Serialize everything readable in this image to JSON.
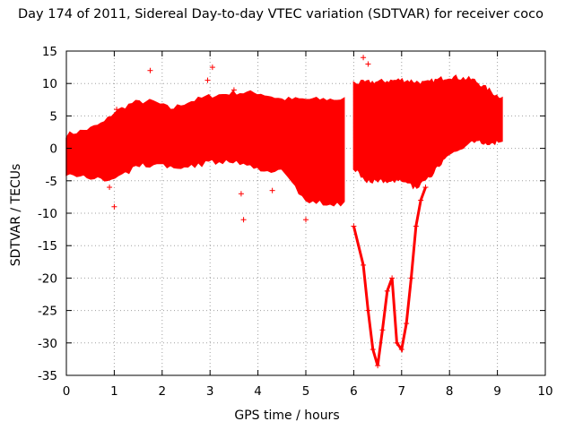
{
  "chart_data": {
    "type": "scatter",
    "title": "Day 174 of 2011, Sidereal Day-to-day VTEC variation (SDTVAR) for receiver coco",
    "xlabel": "GPS time / hours",
    "ylabel": "SDTVAR / TECUs",
    "xlim": [
      0,
      10
    ],
    "ylim": [
      -35,
      15
    ],
    "xticks": [
      "0",
      "1",
      "2",
      "3",
      "4",
      "5",
      "6",
      "7",
      "8",
      "9",
      "10"
    ],
    "yticks": [
      "15",
      "10",
      "5",
      "0",
      "-5",
      "-10",
      "-15",
      "-20",
      "-25",
      "-30",
      "-35"
    ],
    "grid": true,
    "marker": "+",
    "color": "#ff0000",
    "series": [
      {
        "name": "dense band (0–5.8 h)",
        "envelope_upper": [
          [
            0,
            2
          ],
          [
            0.5,
            3
          ],
          [
            0.8,
            4
          ],
          [
            1,
            5.5
          ],
          [
            1.4,
            7
          ],
          [
            1.8,
            7.2
          ],
          [
            2.2,
            6
          ],
          [
            2.5,
            7
          ],
          [
            3,
            8
          ],
          [
            3.5,
            8.5
          ],
          [
            4,
            8.5
          ],
          [
            4.5,
            7.5
          ],
          [
            5,
            7.5
          ],
          [
            5.5,
            7.5
          ],
          [
            5.8,
            7.5
          ]
        ],
        "envelope_lower": [
          [
            0,
            -4
          ],
          [
            0.5,
            -4.5
          ],
          [
            1,
            -5
          ],
          [
            1.5,
            -2.5
          ],
          [
            2,
            -2.5
          ],
          [
            2.5,
            -3
          ],
          [
            3,
            -2
          ],
          [
            3.5,
            -2
          ],
          [
            4,
            -3
          ],
          [
            4.5,
            -3.5
          ],
          [
            5,
            -8
          ],
          [
            5.5,
            -8.5
          ],
          [
            5.8,
            -8.5
          ]
        ]
      },
      {
        "name": "dense band (6–9.1 h)",
        "envelope_upper": [
          [
            6,
            10
          ],
          [
            6.5,
            10.2
          ],
          [
            7,
            10.5
          ],
          [
            7.5,
            10
          ],
          [
            8,
            11
          ],
          [
            8.5,
            10.5
          ],
          [
            9,
            8
          ],
          [
            9.1,
            8
          ]
        ],
        "envelope_lower": [
          [
            6,
            -3
          ],
          [
            6.3,
            -5
          ],
          [
            6.6,
            -5
          ],
          [
            7,
            -5
          ],
          [
            7.3,
            -6
          ],
          [
            7.5,
            -5
          ],
          [
            8,
            -1
          ],
          [
            8.5,
            1
          ],
          [
            9,
            1
          ],
          [
            9.1,
            1
          ]
        ]
      },
      {
        "name": "deep dip arcs",
        "x": [
          6.0,
          6.2,
          6.3,
          6.4,
          6.5,
          6.6,
          6.7,
          6.8,
          6.9,
          7.0,
          7.1,
          7.2,
          7.3,
          7.4,
          7.5
        ],
        "y": [
          -12,
          -18,
          -25,
          -31,
          -33.5,
          -28,
          -22,
          -20,
          -30,
          -31,
          -27,
          -20,
          -12,
          -8,
          -6
        ]
      },
      {
        "name": "outliers",
        "x": [
          1.75,
          3.05,
          2.95,
          3.5,
          3.7,
          3.65,
          1.0,
          1.05,
          0.9,
          4.3,
          5.0,
          6.2,
          6.3,
          8.6
        ],
        "y": [
          12,
          12.5,
          10.5,
          9,
          -11,
          -7,
          -9,
          6,
          -6,
          -6.5,
          -11,
          14,
          13,
          9.5
        ]
      }
    ]
  }
}
